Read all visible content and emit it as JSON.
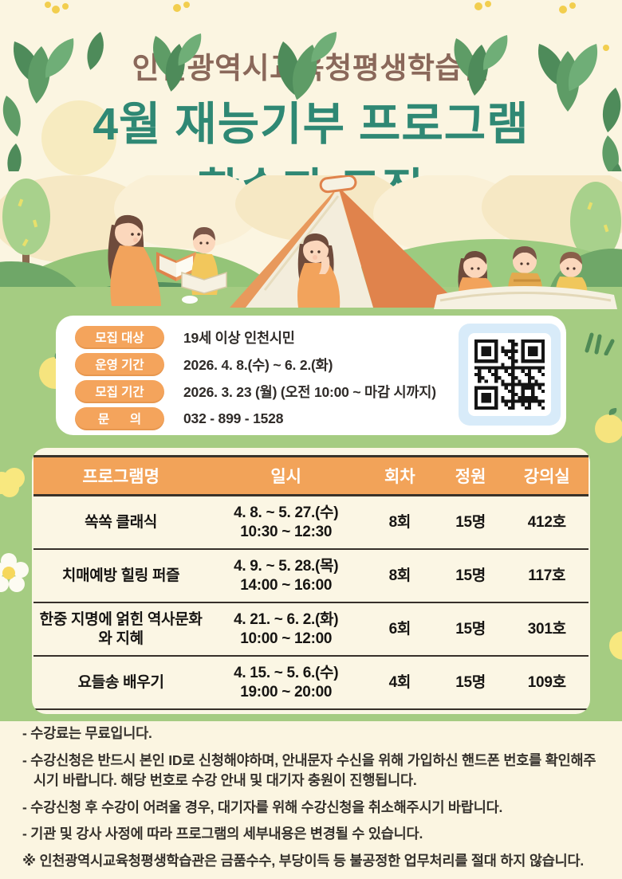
{
  "colors": {
    "background_cream": "#FBF5E1",
    "section_green": "#A5CC82",
    "title_brown": "#8A685A",
    "title_teal": "#2F8874",
    "accent_orange": "#F4A45C",
    "table_header_orange": "#F2A359",
    "qr_panel_blue": "#D8EBF9"
  },
  "header": {
    "org_title": "인천광역시교육청평생학습관",
    "main_title_line1": "4월 재능기부 프로그램",
    "main_title_line2": "학습자 모집"
  },
  "info": {
    "rows": [
      {
        "label": "모집 대상",
        "value": "19세 이상 인천시민"
      },
      {
        "label": "운영 기간",
        "value": "2026. 4. 8.(수) ~ 6. 2.(화)"
      },
      {
        "label": "모집 기간",
        "value": "2026. 3. 23 (월) (오전 10:00 ~ 마감 시까지)"
      },
      {
        "label": "문      의",
        "value": "032 - 899 - 1528"
      }
    ]
  },
  "program_table": {
    "headers": [
      "프로그램명",
      "일시",
      "회차",
      "정원",
      "강의실"
    ],
    "rows": [
      {
        "name": "쏙쏙 클래식",
        "date": "4. 8. ~ 5. 27.(수)",
        "time": "10:30 ~ 12:30",
        "sessions": "8회",
        "capacity": "15명",
        "room": "412호"
      },
      {
        "name": "치매예방 힐링 퍼즐",
        "date": "4. 9. ~ 5. 28.(목)",
        "time": "14:00 ~ 16:00",
        "sessions": "8회",
        "capacity": "15명",
        "room": "117호"
      },
      {
        "name": "한중 지명에 얽힌 역사문화와 지혜",
        "date": "4. 21. ~ 6. 2.(화)",
        "time": "10:00 ~ 12:00",
        "sessions": "6회",
        "capacity": "15명",
        "room": "301호"
      },
      {
        "name": "요들송 배우기",
        "date": "4. 15. ~ 5. 6.(수)",
        "time": "19:00 ~ 20:00",
        "sessions": "4회",
        "capacity": "15명",
        "room": "109호"
      }
    ]
  },
  "notes": [
    "- 수강료는 무료입니다.",
    "- 수강신청은 반드시 본인 ID로 신청해야하며, 안내문자 수신을 위해 가입하신 핸드폰 번호를 확인해주시기 바랍니다. 해당 번호로 수강 안내 및 대기자 충원이 진행됩니다.",
    "- 수강신청 후 수강이 어려울 경우, 대기자를 위해 수강신청을 취소해주시기 바랍니다.",
    "- 기관 및 강사 사정에 따라 프로그램의 세부내용은 변경될 수 있습니다.",
    "※ 인천광역시교육청평생학습관은 금품수수, 부당이득 등 불공정한 업무처리를 절대 하지 않습니다."
  ]
}
